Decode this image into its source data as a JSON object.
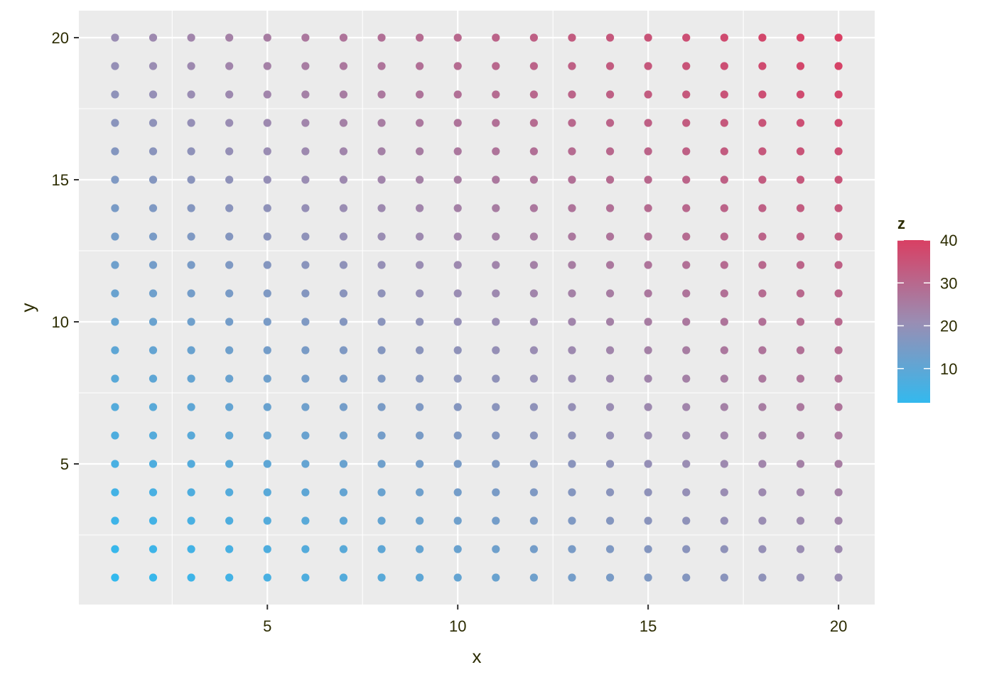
{
  "chart_data": {
    "type": "scatter",
    "title": "",
    "xlabel": "x",
    "ylabel": "y",
    "x": {
      "range": [
        1,
        20
      ],
      "limits": [
        0.05,
        20.95
      ],
      "ticks": [
        5,
        10,
        15,
        20
      ],
      "tick_labels": [
        "5",
        "10",
        "15",
        "20"
      ],
      "minor_ticks": [
        2.5,
        7.5,
        12.5,
        17.5
      ]
    },
    "y": {
      "range": [
        1,
        20
      ],
      "limits": [
        0.05,
        20.95
      ],
      "ticks": [
        5,
        10,
        15,
        20
      ],
      "tick_labels": [
        "5",
        "10",
        "15",
        "20"
      ],
      "minor_ticks": [
        2.5,
        7.5,
        12.5,
        17.5
      ]
    },
    "grid": true,
    "color_variable": "z",
    "z_formula": "x + y",
    "points": "all integer (x, y) pairs with x in 1..20 and y in 1..20, z = x + y",
    "color_scale": {
      "low_color": "#33b9ee",
      "mid_color": "#9a8db3",
      "high_color": "#d93f63",
      "limits": [
        2,
        40
      ],
      "ticks": [
        10,
        20,
        30,
        40
      ],
      "tick_labels": [
        "10",
        "20",
        "30",
        "40"
      ]
    },
    "legend": {
      "title": "z",
      "placement": "right"
    },
    "colors": {
      "panel_background": "#ebebeb",
      "grid_line": "#ffffff",
      "text": "#2b2b00"
    }
  }
}
